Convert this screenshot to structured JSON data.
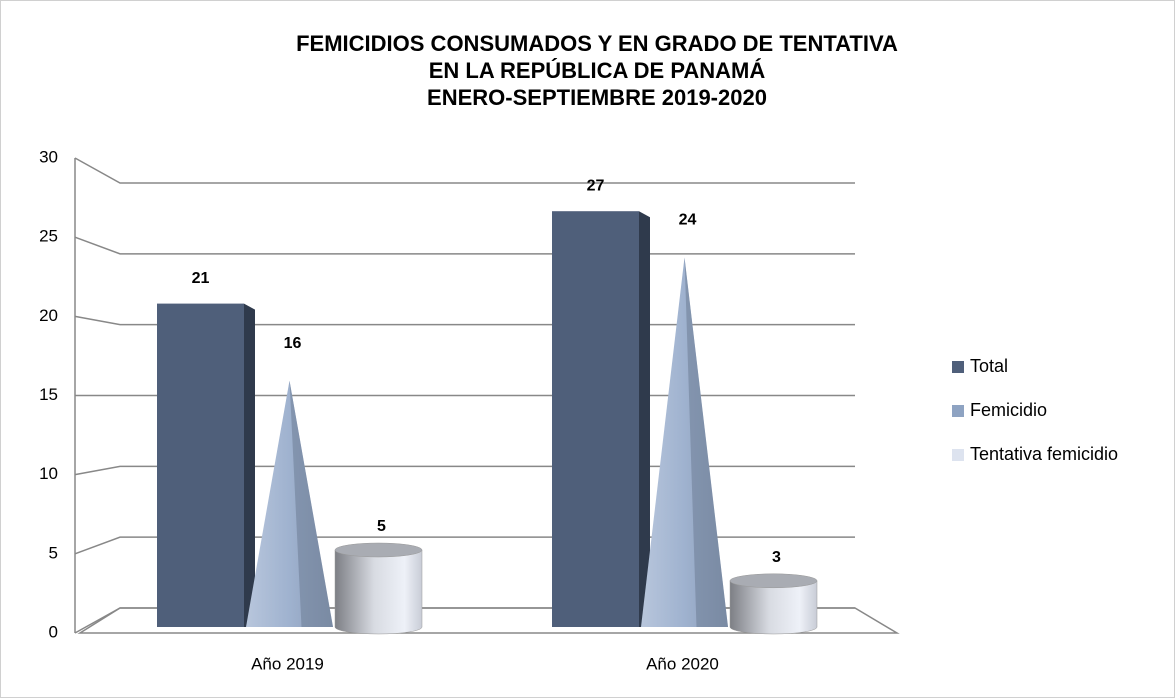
{
  "chart_data": {
    "type": "bar3d",
    "title": [
      "FEMICIDIOS CONSUMADOS  Y EN GRADO DE TENTATIVA",
      "EN LA REPÚBLICA DE PANAMÁ",
      "ENERO-SEPTIEMBRE 2019-2020"
    ],
    "categories": [
      "Año 2019",
      "Año 2020"
    ],
    "series": [
      {
        "name": "Total",
        "color": "#4f5f7a",
        "shape": "box",
        "values": [
          21,
          27
        ]
      },
      {
        "name": "Femicidio",
        "color": "#8ea3c2",
        "shape": "cone",
        "values": [
          16,
          24
        ]
      },
      {
        "name": "Tentativa femicidio",
        "color": "#dde3ef",
        "shape": "cylinder",
        "values": [
          5,
          3
        ]
      }
    ],
    "ylim": [
      0,
      30
    ],
    "yticks": [
      0,
      5,
      10,
      15,
      20,
      25,
      30
    ],
    "grid": true,
    "legend": "right"
  }
}
